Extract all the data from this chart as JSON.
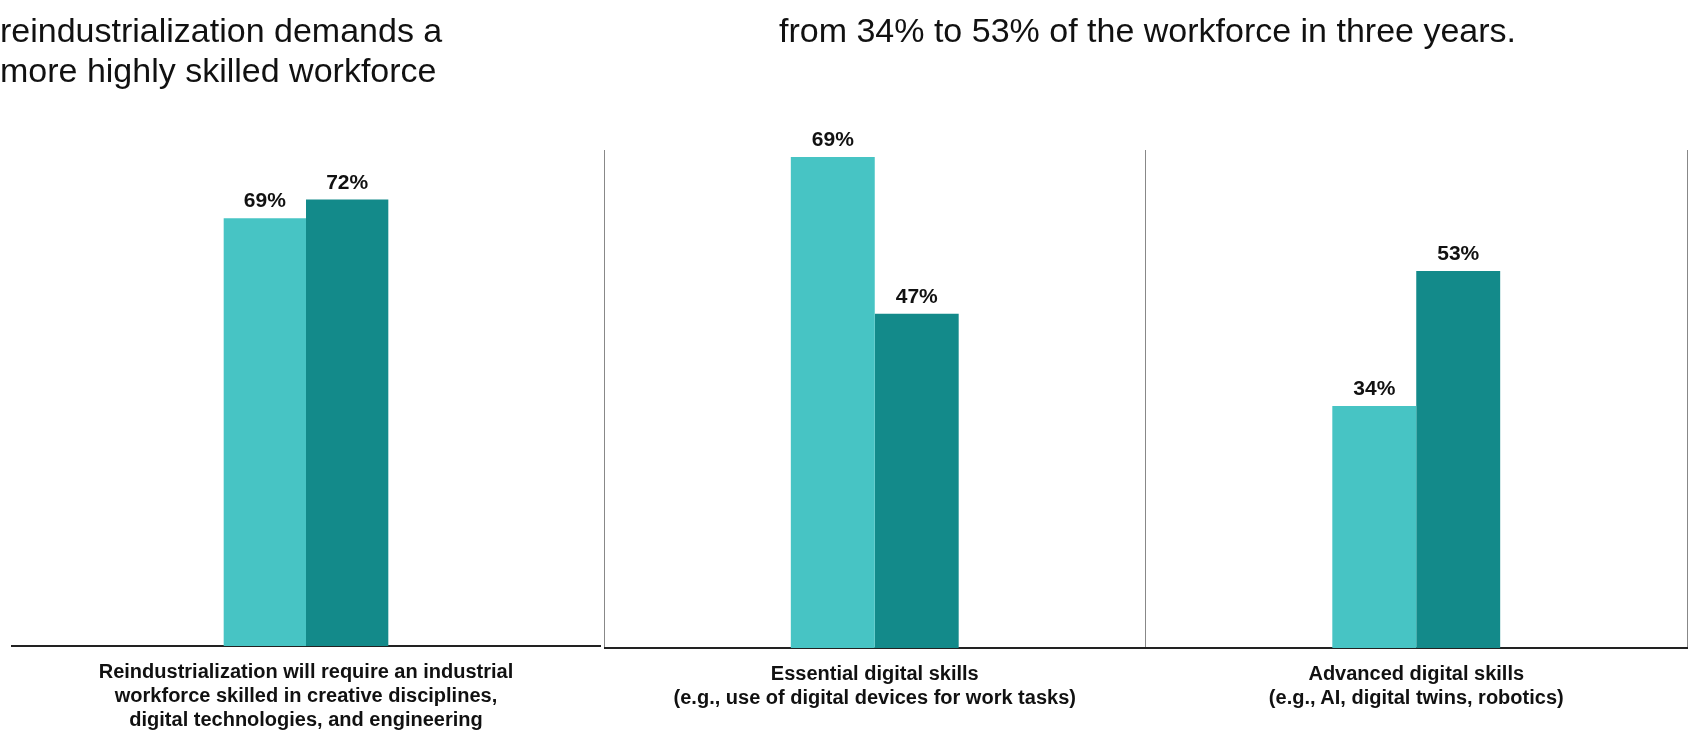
{
  "chart_data": [
    {
      "type": "bar",
      "title": "reindustrialization demands a\nmore highly skilled workforce",
      "categories": [
        "Reindustrialization will require an industrial\nworkforce skilled in creative disciplines,\ndigital technologies, and engineering"
      ],
      "legend": false,
      "tick_labels": "x",
      "series": [
        {
          "color": "#47c4c4",
          "values": [
            69
          ],
          "value_labels": [
            "69%"
          ]
        },
        {
          "color": "#138a8a",
          "values": [
            72
          ],
          "value_labels": [
            "72%"
          ]
        }
      ]
    },
    {
      "type": "bar",
      "title": "from 34% to 53% of the workforce in three years.",
      "categories": [
        "Essential digital skills\n(e.g., use of digital devices for work tasks)",
        "Advanced digital skills\n(e.g., AI, digital twins, robotics)"
      ],
      "grid": "x",
      "legend": false,
      "tick_labels": "x",
      "series": [
        {
          "color": "#47c4c4",
          "values": [
            69,
            34
          ],
          "value_labels": [
            "69%",
            "34%"
          ]
        },
        {
          "color": "#138a8a",
          "values": [
            47,
            53
          ],
          "value_labels": [
            "47%",
            "53%"
          ]
        }
      ]
    }
  ]
}
